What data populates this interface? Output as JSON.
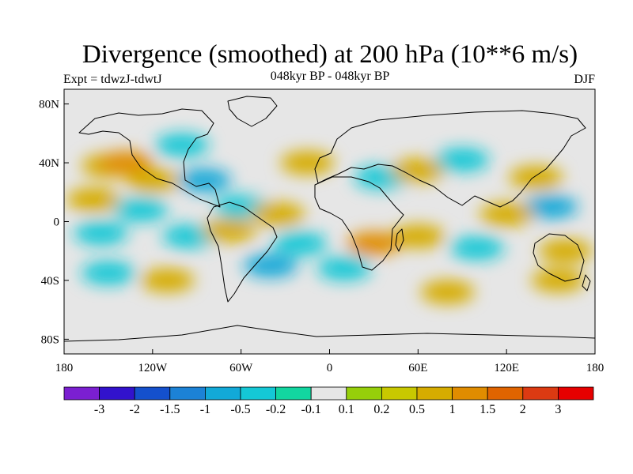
{
  "title": "Divergence (smoothed) at 200 hPa (10**6 m/s)",
  "left_label": "Expt = tdwzJ-tdwtJ",
  "center_label": "048kyr BP - 048kyr BP",
  "right_label": "DJF",
  "chart_data": {
    "type": "heatmap",
    "title": "Divergence (smoothed) at 200 hPa (10**6 m/s)",
    "subtitle": "048kyr BP - 048kyr BP",
    "experiment": "Expt = tdwzJ-tdwtJ",
    "season": "DJF",
    "xlim": [
      -180,
      180
    ],
    "ylim": [
      -90,
      90
    ],
    "x_ticks": [
      {
        "value": -180,
        "label": "180"
      },
      {
        "value": -120,
        "label": "120W"
      },
      {
        "value": -60,
        "label": "60W"
      },
      {
        "value": 0,
        "label": "0"
      },
      {
        "value": 60,
        "label": "60E"
      },
      {
        "value": 120,
        "label": "120E"
      },
      {
        "value": 180,
        "label": "180"
      }
    ],
    "y_ticks": [
      {
        "value": 80,
        "label": "80N"
      },
      {
        "value": 40,
        "label": "40N"
      },
      {
        "value": 0,
        "label": "0"
      },
      {
        "value": -40,
        "label": "40S"
      },
      {
        "value": -80,
        "label": "80S"
      }
    ],
    "colorbar": {
      "colors": [
        "#7b1fd1",
        "#3212cd",
        "#1450cd",
        "#1c82d6",
        "#12a9d8",
        "#14c8d6",
        "#12d6a0",
        "#e6e6e6",
        "#96cf0a",
        "#c8c800",
        "#d6ac00",
        "#e08c00",
        "#e06400",
        "#dc3a12",
        "#e60000"
      ],
      "labels": [
        "-3",
        "-2",
        "-1.5",
        "-1",
        "-0.5",
        "-0.2",
        "-0.1",
        "0.1",
        "0.2",
        "0.5",
        "1",
        "1.5",
        "2",
        "3"
      ],
      "label_offset_bins": 1
    },
    "fields": [
      {
        "lon": -150,
        "lat": 38,
        "level": 2
      },
      {
        "lon": -138,
        "lat": 40,
        "level": 3
      },
      {
        "lon": -100,
        "lat": 52,
        "level": -2
      },
      {
        "lon": -85,
        "lat": 28,
        "level": -3
      },
      {
        "lon": -60,
        "lat": 10,
        "level": -2
      },
      {
        "lon": -120,
        "lat": 28,
        "level": 2
      },
      {
        "lon": -160,
        "lat": 15,
        "level": 2
      },
      {
        "lon": -128,
        "lat": 8,
        "level": -2
      },
      {
        "lon": -155,
        "lat": -8,
        "level": -2
      },
      {
        "lon": -95,
        "lat": -10,
        "level": -2
      },
      {
        "lon": -68,
        "lat": -6,
        "level": 2
      },
      {
        "lon": -35,
        "lat": 5,
        "level": 2
      },
      {
        "lon": -15,
        "lat": 40,
        "level": 2
      },
      {
        "lon": 35,
        "lat": 30,
        "level": -2
      },
      {
        "lon": 60,
        "lat": 35,
        "level": 2
      },
      {
        "lon": 90,
        "lat": 42,
        "level": -2
      },
      {
        "lon": 140,
        "lat": 30,
        "level": 2
      },
      {
        "lon": 150,
        "lat": 10,
        "level": -3
      },
      {
        "lon": 120,
        "lat": 5,
        "level": 2
      },
      {
        "lon": 100,
        "lat": -18,
        "level": -2
      },
      {
        "lon": 60,
        "lat": -10,
        "level": 2
      },
      {
        "lon": 30,
        "lat": -15,
        "level": 3
      },
      {
        "lon": 10,
        "lat": -32,
        "level": -2
      },
      {
        "lon": -40,
        "lat": -30,
        "level": -3
      },
      {
        "lon": -110,
        "lat": -40,
        "level": 2
      },
      {
        "lon": 155,
        "lat": -40,
        "level": 2
      },
      {
        "lon": 80,
        "lat": -48,
        "level": 2
      },
      {
        "lon": 160,
        "lat": -20,
        "level": 2
      },
      {
        "lon": -150,
        "lat": -35,
        "level": -2
      },
      {
        "lon": -20,
        "lat": -15,
        "level": -2
      }
    ]
  }
}
